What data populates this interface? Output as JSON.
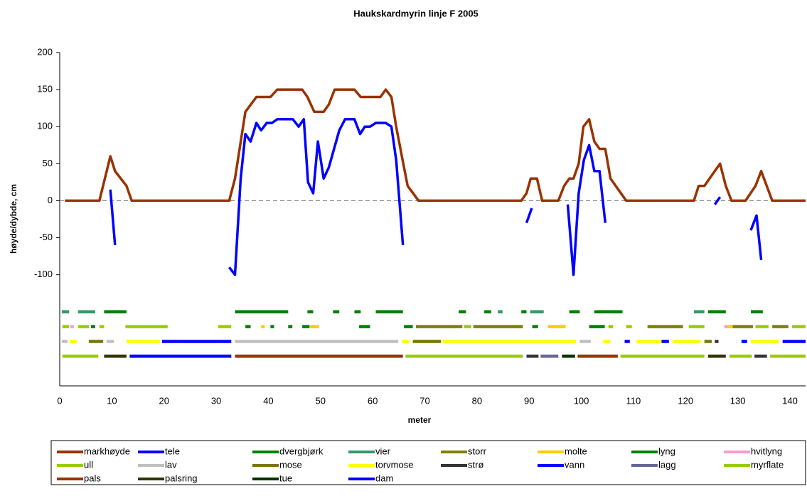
{
  "chart_data": {
    "type": "line",
    "title": "Haukskardmyrin linje F 2005",
    "x_label": "meter",
    "y_label": "høyde/dybde, cm",
    "xlim": [
      0,
      143
    ],
    "xticks": [
      0,
      10,
      20,
      30,
      40,
      50,
      60,
      70,
      80,
      90,
      100,
      110,
      120,
      130,
      140
    ],
    "ylim": [
      -250,
      200
    ],
    "yticks": [
      -100,
      -50,
      0,
      50,
      100,
      150,
      200
    ],
    "zero_line": true,
    "series": [
      {
        "name": "markhøyde",
        "color": "#993300",
        "x": [
          1,
          7.6,
          9.7,
          10.6,
          12.8,
          13.8,
          32.5,
          33.6,
          35.6,
          37.7,
          40.4,
          41.7,
          46.5,
          47.5,
          48.8,
          50.6,
          51.6,
          52.7,
          56.5,
          57.7,
          61.5,
          62.5,
          63.6,
          64.5,
          65.6,
          66.7,
          68.8,
          88.5,
          89.5,
          90.3,
          91.5,
          92.5,
          95.6,
          96.7,
          97.7,
          98.5,
          99.5,
          100.4,
          101.5,
          102.5,
          103.5,
          104.6,
          105.6,
          108.6,
          121.6,
          122.5,
          123.6,
          126.6,
          127.7,
          128.8,
          131.5,
          133.4,
          134.5,
          136.6,
          143
        ],
        "values": [
          0,
          0,
          60,
          40,
          20,
          0,
          0,
          30,
          120,
          140,
          140,
          150,
          150,
          140,
          120,
          120,
          130,
          150,
          150,
          140,
          140,
          150,
          140,
          100,
          60,
          20,
          0,
          0,
          10,
          30,
          30,
          0,
          0,
          20,
          30,
          30,
          50,
          100,
          110,
          80,
          70,
          70,
          30,
          0,
          0,
          20,
          20,
          50,
          20,
          0,
          0,
          20,
          40,
          0,
          0
        ]
      },
      {
        "name": "tele",
        "color": "#0000FF",
        "x": [
          9.7,
          10.6,
          null,
          32.5,
          33.6,
          34.7,
          35.6,
          36.6,
          37.7,
          38.6,
          39.7,
          40.7,
          41.7,
          44.7,
          45.8,
          46.8,
          47.6,
          48.6,
          49.5,
          50.6,
          51.6,
          53.6,
          54.7,
          56.5,
          57.6,
          58.5,
          59.5,
          60.6,
          62.5,
          63.6,
          64.5,
          65.8,
          null,
          89.5,
          90.5,
          null,
          97.4,
          98.5,
          99.5,
          100.5,
          101.5,
          102.5,
          103.5,
          104.6,
          null,
          125.6,
          126.6,
          null,
          132.5,
          133.6,
          134.5
        ],
        "values": [
          15,
          -60,
          null,
          -90,
          -100,
          30,
          90,
          80,
          105,
          95,
          105,
          105,
          110,
          110,
          100,
          110,
          25,
          10,
          80,
          30,
          45,
          95,
          110,
          110,
          90,
          100,
          100,
          105,
          105,
          100,
          55,
          -60,
          null,
          -30,
          -10,
          null,
          -5,
          -100,
          10,
          55,
          75,
          40,
          40,
          -30,
          null,
          -5,
          5,
          null,
          -40,
          -20,
          -80
        ]
      },
      {
        "name": "dvergbjørk",
        "color": "#008000",
        "x": [
          8.5,
          12.8,
          null,
          33.6,
          43.8,
          null,
          47.5,
          48.6,
          null,
          52.4,
          53.6,
          null,
          56.5,
          57.7,
          null,
          60.6,
          65.8,
          null,
          76.5,
          77.9,
          null,
          81.4,
          82.7,
          null,
          88.5,
          89.5,
          null,
          97.7,
          99.7,
          null,
          102.5,
          107.9,
          null,
          124.3,
          127.7,
          null,
          132.5,
          134.8
        ],
        "values": [
          -150,
          -150,
          null,
          -150,
          -150,
          null,
          -150,
          -150,
          null,
          -150,
          -150,
          null,
          -150,
          -150,
          null,
          -150,
          -150,
          null,
          -150,
          -150,
          null,
          -150,
          -150,
          null,
          -150,
          -150,
          null,
          -150,
          -150,
          null,
          -150,
          -150,
          null,
          -150,
          -150,
          null,
          -150,
          -150
        ]
      },
      {
        "name": "vier",
        "color": "#339966",
        "x": [
          0.4,
          1.8,
          null,
          3.5,
          6.8,
          null,
          84,
          84.9,
          null,
          90.2,
          92.8,
          null,
          121.6,
          123.6
        ],
        "values": [
          -150,
          -150,
          null,
          -150,
          -150,
          null,
          -150,
          -150,
          null,
          -150,
          -150,
          null,
          -150,
          -150
        ]
      },
      {
        "name": "storr",
        "color": "#808000",
        "x": [
          68.3,
          77.2,
          null,
          79.3,
          88.8,
          null,
          112.7,
          119.5,
          null,
          129,
          132.9,
          null,
          136.6,
          139.7
        ],
        "values": [
          -170,
          -170,
          null,
          -170,
          -170,
          null,
          -170,
          -170,
          null,
          -170,
          -170,
          null,
          -170,
          -170
        ]
      },
      {
        "name": "molte",
        "color": "#FFCC00",
        "x": [
          38.6,
          39.3,
          null,
          48,
          49.7,
          null,
          93.6,
          97,
          null,
          128,
          129
        ],
        "values": [
          -170,
          -170,
          null,
          -170,
          -170,
          null,
          -170,
          -170,
          null,
          -170,
          -170
        ]
      },
      {
        "name": "lyng",
        "color": "#008000",
        "x": [
          6,
          6.8,
          null,
          35.6,
          36.6,
          null,
          40.4,
          41.1,
          null,
          43.8,
          44.6,
          null,
          46.5,
          47.9,
          null,
          57.4,
          59.5,
          null,
          66,
          67.7,
          null,
          90.6,
          91.7,
          null,
          101.5,
          104.5
        ],
        "values": [
          -170,
          -170,
          null,
          -170,
          -170,
          null,
          -170,
          -170,
          null,
          -170,
          -170,
          null,
          -170,
          -170,
          null,
          -170,
          -170,
          null,
          -170,
          -170,
          null,
          -170,
          -170,
          null,
          -170,
          -170
        ]
      },
      {
        "name": "hvitlyng",
        "color": "#FF99CC",
        "x": [
          2,
          2.7,
          null,
          127.4,
          128
        ],
        "values": [
          -170,
          -170,
          null,
          -170,
          -170
        ]
      },
      {
        "name": "ull",
        "color": "#99CC00",
        "x": [
          0.5,
          1.8,
          null,
          3.5,
          5.6,
          null,
          7.6,
          8.5,
          null,
          12.6,
          20.7,
          null,
          30.4,
          32.9,
          null,
          77.5,
          78.9,
          null,
          105.2,
          106.1,
          null,
          108.6,
          109.7,
          null,
          120.6,
          123.6,
          null,
          133.4,
          135.9,
          null,
          140.4,
          143
        ],
        "values": [
          -170,
          -170,
          null,
          -170,
          -170,
          null,
          -170,
          -170,
          null,
          -170,
          -170,
          null,
          -170,
          -170,
          null,
          -170,
          -170,
          null,
          -170,
          -170,
          null,
          -170,
          -170,
          null,
          -170,
          -170,
          null,
          -170,
          -170,
          null,
          -170,
          -170
        ]
      },
      {
        "name": "lav",
        "color": "#C0C0C0",
        "x": [
          0.4,
          1.5,
          null,
          9,
          10.4,
          null,
          33.6,
          64.9,
          null,
          99.7,
          101.8
        ],
        "values": [
          -190,
          -190,
          null,
          -190,
          -190,
          null,
          -190,
          -190,
          null,
          -190,
          -190
        ]
      },
      {
        "name": "mose",
        "color": "#777700",
        "x": [
          5.6,
          8.3,
          null,
          67.7,
          73.1,
          null,
          123.6,
          125
        ],
        "values": [
          -190,
          -190,
          null,
          -190,
          -190,
          null,
          -190,
          -190
        ]
      },
      {
        "name": "torvmose",
        "color": "#FFFF00",
        "x": [
          1.9,
          3.3,
          null,
          12.8,
          19.2,
          null,
          65.6,
          67,
          null,
          73.4,
          99,
          null,
          104.2,
          105.6,
          null,
          110.6,
          115.4,
          null,
          117.5,
          122.9,
          null,
          132.5,
          137.9
        ],
        "values": [
          -190,
          -190,
          null,
          -190,
          -190,
          null,
          -190,
          -190,
          null,
          -190,
          -190,
          null,
          -190,
          -190,
          null,
          -190,
          -190,
          null,
          -190,
          -190,
          null,
          -190,
          -190
        ]
      },
      {
        "name": "strø",
        "color": "#333333",
        "x": [
          125.6,
          126.3,
          null,
          89.5,
          91.8,
          null,
          133.2,
          135.6
        ],
        "values": [
          -190,
          -190,
          null,
          -210,
          -210,
          null,
          -210,
          -210
        ]
      },
      {
        "name": "vann",
        "color": "#0000FF",
        "x": [
          19.6,
          32.9,
          null,
          108.3,
          109.3,
          null,
          115.4,
          116.8,
          null,
          130.7,
          131.8,
          null,
          138.6,
          143
        ],
        "values": [
          -190,
          -190,
          null,
          -190,
          -190,
          null,
          -190,
          -190,
          null,
          -190,
          -190,
          null,
          -190,
          -190
        ]
      },
      {
        "name": "lagg",
        "color": "#666699",
        "x": [
          92.2,
          95.6
        ],
        "values": [
          -210,
          -210
        ]
      },
      {
        "name": "myrflate",
        "color": "#99CC00",
        "x": [
          0.5,
          7.4,
          null,
          66.3,
          88.8,
          null,
          107.5,
          123.6,
          null,
          128.4,
          132.7,
          null,
          136.2,
          143
        ],
        "values": [
          -210,
          -210,
          null,
          -210,
          -210,
          null,
          -210,
          -210,
          null,
          -210,
          -210,
          null,
          -210,
          -210
        ]
      },
      {
        "name": "pals",
        "color": "#993300",
        "x": [
          33.6,
          65.8,
          null,
          99.3,
          107
        ],
        "values": [
          -210,
          -210,
          null,
          -210,
          -210
        ]
      },
      {
        "name": "palsring",
        "color": "#333300",
        "x": [
          8.5,
          12.8,
          null,
          124.3,
          127.7
        ],
        "values": [
          -210,
          -210,
          null,
          -210,
          -210
        ]
      },
      {
        "name": "tue",
        "color": "#003300",
        "x": [
          96.3,
          98.8
        ],
        "values": [
          -210,
          -210
        ]
      },
      {
        "name": "dam",
        "color": "#0000FF",
        "x": [
          13.4,
          32.9
        ],
        "values": [
          -210,
          -210
        ]
      }
    ]
  }
}
